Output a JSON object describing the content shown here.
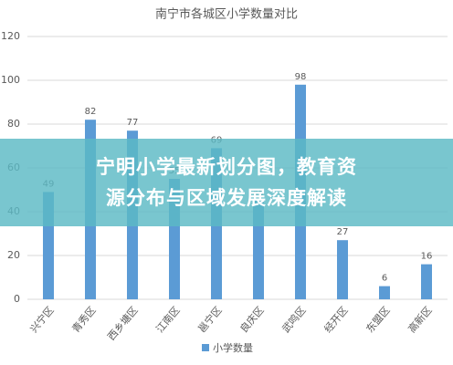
{
  "chart_data": {
    "type": "bar",
    "title": "南宁市各城区小学数量对比",
    "categories": [
      "兴宁区",
      "青秀区",
      "西乡塘区",
      "江南区",
      "邕宁区",
      "良庆区",
      "武鸣区",
      "经开区",
      "东盟区",
      "高新区"
    ],
    "series": [
      {
        "name": "小学数量",
        "color": "#5b9bd5",
        "values": [
          49,
          82,
          77,
          55,
          69,
          45,
          98,
          27,
          6,
          16
        ]
      }
    ],
    "ylim": [
      0,
      120
    ],
    "yticks": [
      0,
      20,
      40,
      60,
      80,
      100,
      120
    ],
    "grid": true,
    "legend": "bottom"
  },
  "overlay": {
    "banner_lines": [
      "宁明小学最新划分图，教育资",
      "源分布与区域发展深度解读"
    ]
  }
}
